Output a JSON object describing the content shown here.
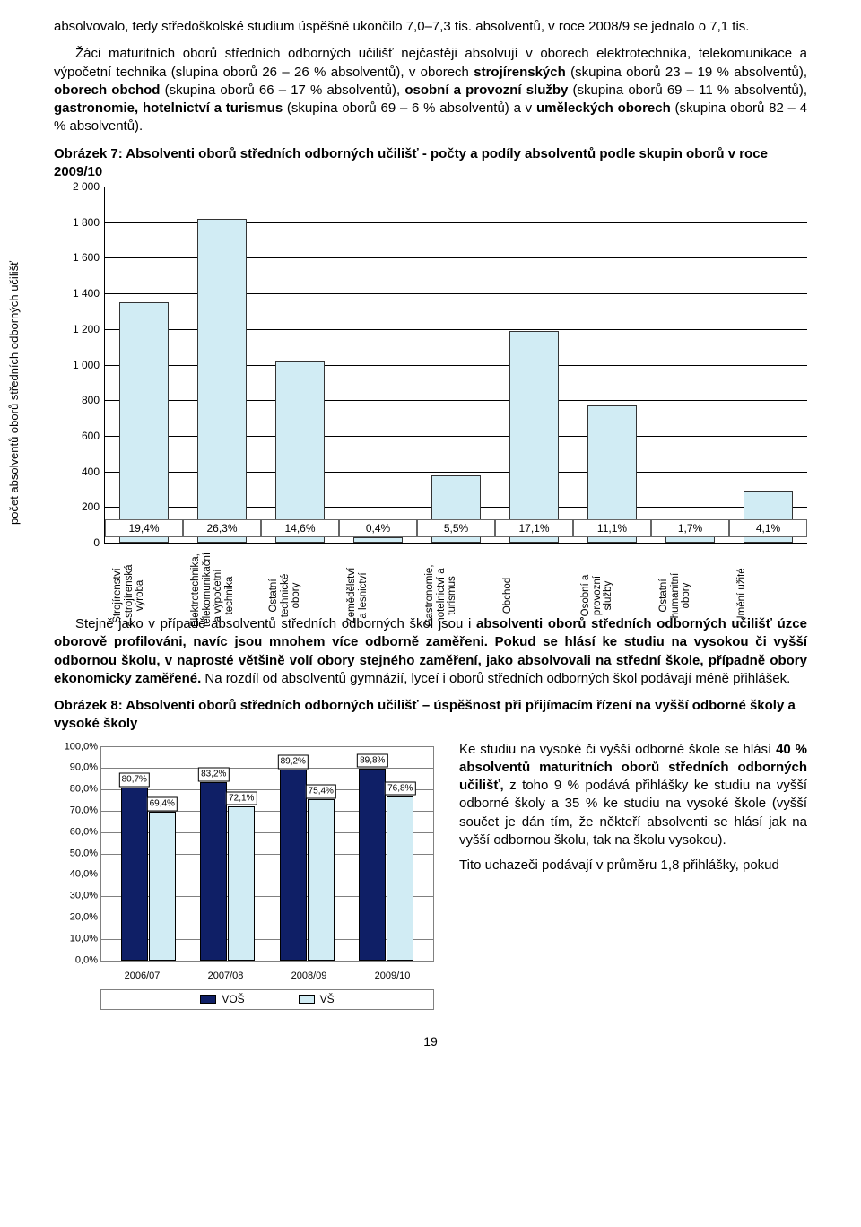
{
  "para1": "absolvovalo, tedy středoškolské studium úspěšně ukončilo 7,0–7,3 tis. absolventů, v roce 2008/9 se jednalo o 7,1 tis.",
  "para2_a": "Žáci maturitních oborů středních odborných učilišť nejčastěji absolvují v oborech elektrotechnika, telekomunikace a výpočetní technika (slupina oborů 26 – 26 % absolventů), v oborech ",
  "para2_b1": "strojírenských",
  "para2_c": " (skupina oborů 23 – 19 % absolventů), ",
  "para2_b2": "oborech obchod",
  "para2_d": " (skupina oborů 66 – 17 % absolventů), ",
  "para2_b3": "osobní a provozní služby",
  "para2_e": " (skupina oborů 69 – 11 % absolventů), ",
  "para2_b4": "gastronomie, hotelnictví a turismus",
  "para2_f": " (skupina oborů 69 – 6 % absolventů) a v ",
  "para2_b5": "uměleckých oborech",
  "para2_g": " (skupina oborů 82 – 4 % absolventů).",
  "caption1": "Obrázek 7: Absolventi oborů středních odborných učilišť - počty a podíly absolventů podle skupin oborů v roce 2009/10",
  "chart1": {
    "ylabel": "počet absolventů oborů středních odborných učilišť",
    "ymax": 2000,
    "ytick_step": 200,
    "bar_color": "#d1ecf4",
    "bar_border": "#333333",
    "grid_color": "#000000",
    "bg": "#ffffff",
    "categories": [
      "Strojírenství a strojírenská výroba",
      "Elektrotechnika, telekomunikační a výpočetní technika",
      "Ostatní technické obory",
      "Zemědělství a lesnictví",
      "Gastronomie, hotelnictví a turismus",
      "Obchod",
      "Osobní a provozní služby",
      "Ostatní humanitní obory",
      "Umění užité"
    ],
    "values": [
      1350,
      1820,
      1020,
      30,
      380,
      1190,
      770,
      120,
      290
    ],
    "labels": [
      "19,4%",
      "26,3%",
      "14,6%",
      "0,4%",
      "5,5%",
      "17,1%",
      "11,1%",
      "1,7%",
      "4,1%"
    ]
  },
  "para3_a": "Stejně jako v případě absolventů středních odborných škol jsou i ",
  "para3_b1": "absolventi oborů středních odborných učilišť úzce oborově profilováni, navíc jsou mnohem více odborně zaměřeni. Pokud se hlásí ke studiu na vysokou či vyšší odbornou školu, v naprosté většině volí obory stejného zaměření, jako absolvovali na střední škole, případně obory ekonomicky zaměřené.",
  "para3_c": " Na rozdíl od absolventů gymnázií, lyceí i oborů středních odborných škol podávají méně přihlášek.",
  "caption2": "Obrázek 8: Absolventi oborů středních odborných učilišť – úspěšnost při přijímacím řízení na vyšší odborné školy a vysoké školy",
  "chart2": {
    "ymax": 100,
    "ytick_step": 10,
    "bg": "#ffffff",
    "colors": {
      "vos": "#0f1f66",
      "vs": "#d1ecf4"
    },
    "years": [
      "2006/07",
      "2007/08",
      "2008/09",
      "2009/10"
    ],
    "vos": [
      80.7,
      83.2,
      89.2,
      89.8
    ],
    "vs": [
      69.4,
      72.1,
      75.4,
      76.8
    ],
    "vos_labels": [
      "80,7%",
      "83,2%",
      "89,2%",
      "89,8%"
    ],
    "vs_labels": [
      "69,4%",
      "72,1%",
      "75,4%",
      "76,8%"
    ],
    "legend": {
      "vos": "VOŠ",
      "vs": "VŠ"
    }
  },
  "right_p1_a": "Ke studiu na vysoké či vyšší odborné škole se hlásí ",
  "right_p1_b": "40 % absolventů maturitních oborů středních odborných učilišť,",
  "right_p1_c": " z toho 9 % podává přihlášky ke studiu na vyšší odborné školy a 35 % ke studiu na vysoké škole (vyšší součet je dán tím, že někteří absolventi se hlásí jak na vyšší odbornou školu, tak na školu vysokou).",
  "right_p2": "Tito uchazeči podávají v průměru 1,8 přihlášky, pokud",
  "pagenum": "19"
}
